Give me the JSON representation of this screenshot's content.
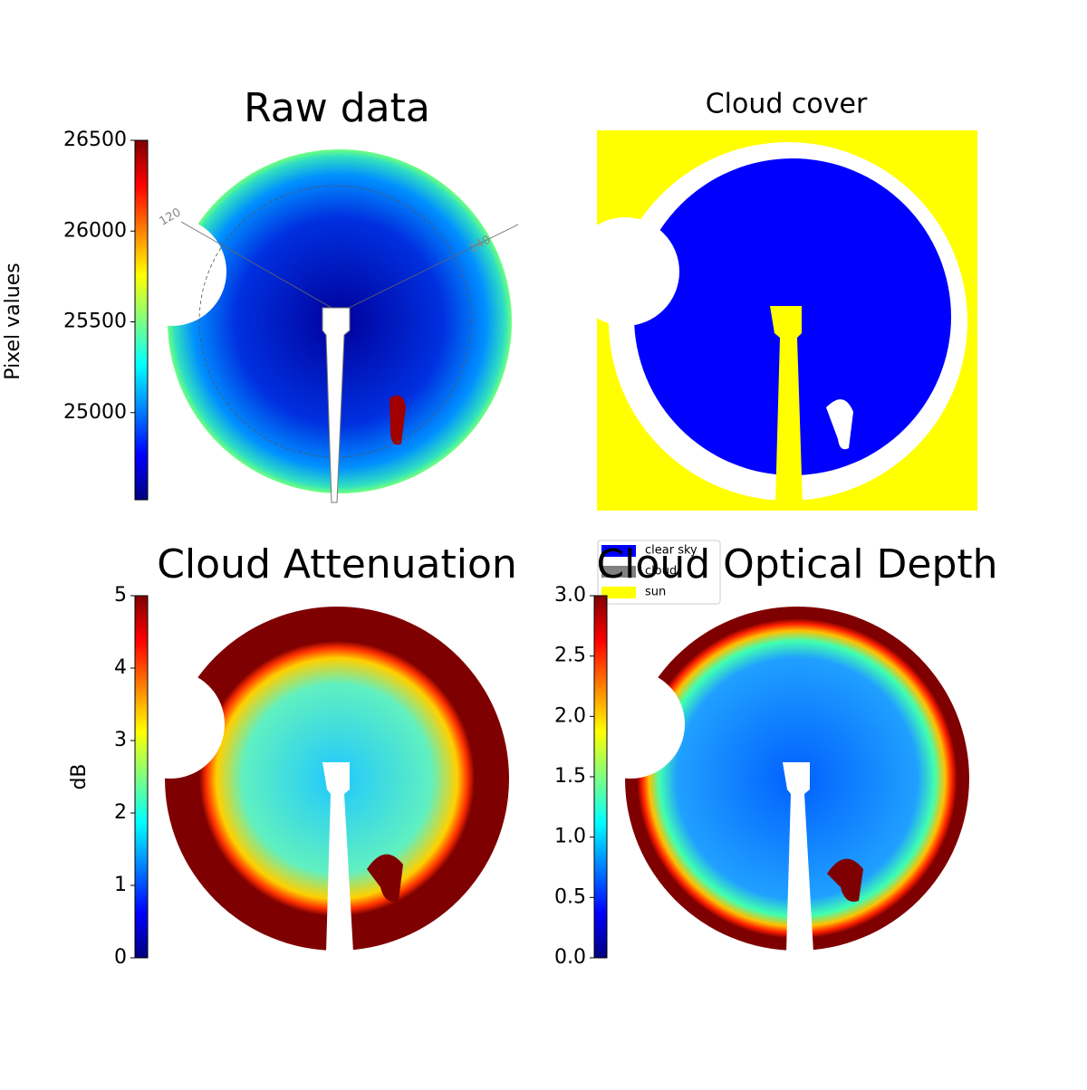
{
  "chart_data": [
    {
      "type": "image",
      "title": "Raw data",
      "colorbar_label": "Pixel values",
      "colormap": "jet",
      "ylim": [
        24520,
        26500
      ],
      "yticks": [
        25000,
        25500,
        26000,
        26500
      ],
      "annotations": [
        "120",
        "240"
      ]
    },
    {
      "type": "image",
      "title": "Cloud cover",
      "series": [
        {
          "name": "clear sky",
          "color": "#0000ff"
        },
        {
          "name": "cloud",
          "color": "#808080"
        },
        {
          "name": "sun",
          "color": "#ffff00"
        }
      ]
    },
    {
      "type": "image",
      "title": "Cloud Attenuation",
      "colorbar_label": "dB",
      "colormap": "jet",
      "ylim": [
        0,
        5
      ],
      "yticks": [
        0,
        1,
        2,
        3,
        4,
        5
      ]
    },
    {
      "type": "image",
      "title": "Cloud Optical Depth",
      "colormap": "jet",
      "ylim": [
        0,
        3
      ],
      "yticks": [
        {
          "value": 0,
          "label": "0.0"
        },
        0.5,
        {
          "value": 1,
          "label": "1.0"
        },
        1.5,
        {
          "value": 2,
          "label": "2.0"
        },
        2.5,
        {
          "value": 3,
          "label": "3.0"
        }
      ]
    }
  ]
}
